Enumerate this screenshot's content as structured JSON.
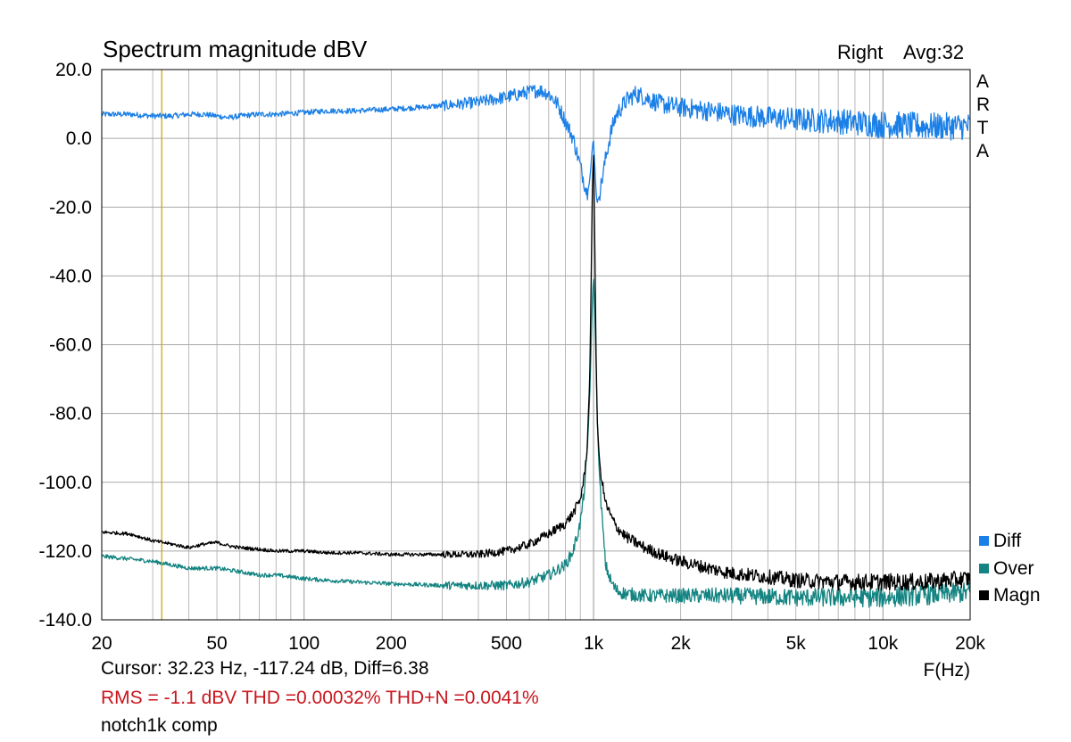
{
  "header": {
    "title": "Spectrum magnitude dBV",
    "channel": "Right",
    "avg": "Avg:32",
    "watermark": [
      "A",
      "R",
      "T",
      "A"
    ]
  },
  "footer": {
    "cursor": "Cursor: 32.23 Hz, -117.24 dB,  Diff=6.38",
    "stats": "RMS =   -1.1 dBV  THD =0.00032%  THD+N =0.0041%",
    "file": "notch1k comp"
  },
  "colors": {
    "diff": "#1a7fe6",
    "over": "#138481",
    "magn": "#000000",
    "grid": "#a9a9a9",
    "cursor": "#c8a000",
    "stats_text": "#c8161d"
  },
  "chart_data": {
    "type": "line",
    "xscale": "log",
    "xlim": [
      20,
      20000
    ],
    "ylim": [
      -140,
      20
    ],
    "xlabel": "F(Hz)",
    "ylabel": "",
    "grid": true,
    "legend": "bottom-right",
    "cursor_x": 32.23,
    "x_ticks": [
      {
        "v": 20,
        "label": "20"
      },
      {
        "v": 50,
        "label": "50"
      },
      {
        "v": 100,
        "label": "100"
      },
      {
        "v": 200,
        "label": "200"
      },
      {
        "v": 500,
        "label": "500"
      },
      {
        "v": 1000,
        "label": "1k"
      },
      {
        "v": 2000,
        "label": "2k"
      },
      {
        "v": 5000,
        "label": "5k"
      },
      {
        "v": 10000,
        "label": "10k"
      },
      {
        "v": 20000,
        "label": "20k"
      }
    ],
    "y_ticks": [
      {
        "v": 20,
        "label": "20.0"
      },
      {
        "v": 0,
        "label": "0.0"
      },
      {
        "v": -20,
        "label": "-20.0"
      },
      {
        "v": -40,
        "label": "-40.0"
      },
      {
        "v": -60,
        "label": "-60.0"
      },
      {
        "v": -80,
        "label": "-80.0"
      },
      {
        "v": -100,
        "label": "-100.0"
      },
      {
        "v": -120,
        "label": "-120.0"
      },
      {
        "v": -140,
        "label": "-140.0"
      }
    ],
    "series": [
      {
        "name": "Diff",
        "color": "#1a7fe6",
        "x": [
          20,
          25,
          30,
          35,
          40,
          45,
          50,
          55,
          60,
          70,
          80,
          100,
          120,
          150,
          200,
          250,
          300,
          400,
          500,
          600,
          650,
          700,
          750,
          800,
          850,
          900,
          930,
          950,
          970,
          980,
          990,
          1000,
          1010,
          1020,
          1030,
          1050,
          1080,
          1100,
          1150,
          1200,
          1300,
          1400,
          1500,
          1700,
          2000,
          2500,
          3000,
          4000,
          5000,
          7000,
          10000,
          14000,
          20000
        ],
        "y": [
          7,
          7,
          6.5,
          6.5,
          7,
          7,
          6.5,
          6,
          6.5,
          7,
          7,
          7.5,
          8,
          8,
          8.5,
          9,
          9.5,
          10.5,
          12,
          13.5,
          14,
          13,
          10,
          5,
          0,
          -8,
          -13,
          -16,
          -12,
          -8,
          -3,
          0,
          -8,
          -15,
          -19,
          -16,
          -10,
          -6,
          2,
          7,
          11,
          13,
          12,
          10,
          9,
          8,
          7,
          6,
          5.5,
          5,
          4,
          3.5,
          3.5
        ]
      },
      {
        "name": "Over",
        "color": "#138481",
        "x": [
          20,
          30,
          40,
          50,
          60,
          70,
          80,
          100,
          120,
          150,
          200,
          300,
          400,
          500,
          600,
          700,
          800,
          850,
          900,
          930,
          950,
          970,
          980,
          990,
          1000,
          1010,
          1020,
          1030,
          1050,
          1080,
          1100,
          1150,
          1200,
          1300,
          1500,
          2000,
          3000,
          5000,
          10000,
          20000
        ],
        "y": [
          -121.5,
          -123,
          -125,
          -125,
          -126,
          -127,
          -127,
          -128,
          -128.5,
          -129,
          -129.5,
          -130,
          -130,
          -130,
          -129,
          -127,
          -124,
          -120,
          -112,
          -102,
          -92,
          -75,
          -62,
          -47,
          -40,
          -50,
          -65,
          -82,
          -100,
          -115,
          -124,
          -129,
          -131.5,
          -132.5,
          -133,
          -133,
          -133,
          -133.5,
          -133.5,
          -132
        ]
      },
      {
        "name": "Magn",
        "color": "#000000",
        "x": [
          20,
          25,
          30,
          35,
          40,
          45,
          50,
          55,
          60,
          70,
          80,
          100,
          120,
          150,
          200,
          300,
          400,
          500,
          550,
          600,
          700,
          800,
          850,
          900,
          930,
          950,
          970,
          980,
          990,
          1000,
          1010,
          1020,
          1030,
          1050,
          1080,
          1100,
          1150,
          1200,
          1300,
          1500,
          1700,
          2000,
          2500,
          3000,
          4000,
          5000,
          7000,
          10000,
          14000,
          20000
        ],
        "y": [
          -114.5,
          -115,
          -117,
          -118,
          -119,
          -118,
          -117.5,
          -118.5,
          -119,
          -119.5,
          -120,
          -120,
          -120.5,
          -120.5,
          -121,
          -121,
          -121,
          -120,
          -119,
          -118,
          -115,
          -112,
          -109,
          -105,
          -98,
          -90,
          -70,
          -45,
          -15,
          -3,
          -30,
          -62,
          -82,
          -95,
          -102,
          -106,
          -110,
          -113,
          -116,
          -119,
          -121,
          -123,
          -125,
          -126.5,
          -127.5,
          -128.5,
          -129,
          -129,
          -129,
          -128
        ]
      }
    ]
  }
}
